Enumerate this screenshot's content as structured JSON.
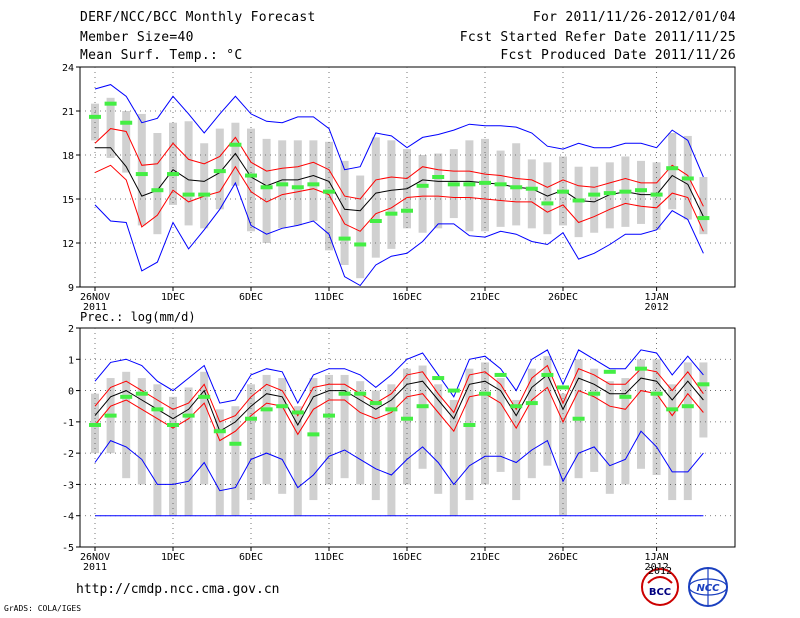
{
  "header": {
    "title": "DERF/NCC/BCC Monthly Forecast",
    "member": "Member Size=40",
    "variable": "Mean Surf. Temp.: °C",
    "period": "For 2011/11/26-2012/01/04",
    "started": "Fcst Started Refer Date 2011/11/25",
    "produced": "Fcst Produced Date 2011/11/26"
  },
  "footer": {
    "url": "http://cmdp.ncc.cma.gov.cn",
    "credit": "GrADS: COLA/IGES"
  },
  "logos": {
    "bcc": "BCC",
    "ncc": "NCC",
    "year_partial": "2012"
  },
  "colors": {
    "envelope": "#0000ff",
    "spread": "#ff0000",
    "mean": "#000000",
    "median": "#44ee44",
    "box": "#d0d0d0"
  },
  "chart_data": [
    {
      "type": "box",
      "title": "Mean Surf. Temp.: °C",
      "ylim": [
        9,
        24
      ],
      "yticks": [
        9,
        12,
        15,
        18,
        21,
        24
      ],
      "xtick_labels": [
        {
          "day": 0,
          "text": "26NOV",
          "sub": "2011"
        },
        {
          "day": 5,
          "text": "1DEC"
        },
        {
          "day": 10,
          "text": "6DEC"
        },
        {
          "day": 15,
          "text": "11DEC"
        },
        {
          "day": 20,
          "text": "16DEC"
        },
        {
          "day": 25,
          "text": "21DEC"
        },
        {
          "day": 30,
          "text": "26DEC"
        },
        {
          "day": 36,
          "text": "1JAN",
          "sub": "2012"
        }
      ],
      "max": [
        22.5,
        22.8,
        22.0,
        20.2,
        20.5,
        22.0,
        20.8,
        19.5,
        20.8,
        22.0,
        20.8,
        20.3,
        20.2,
        20.6,
        20.6,
        19.8,
        17.0,
        17.2,
        19.5,
        19.3,
        18.5,
        19.2,
        19.4,
        19.7,
        20.1,
        20.0,
        20.0,
        19.9,
        19.5,
        18.6,
        18.4,
        18.8,
        18.5,
        18.5,
        18.8,
        18.8,
        18.5,
        19.7,
        19.0,
        16.5
      ],
      "plus_sd": [
        18.8,
        19.8,
        19.6,
        17.3,
        17.4,
        18.8,
        17.7,
        17.4,
        17.9,
        19.2,
        17.5,
        16.9,
        17.1,
        17.2,
        17.5,
        17.0,
        15.2,
        15.0,
        16.3,
        16.5,
        16.4,
        17.2,
        17.0,
        16.9,
        16.9,
        16.7,
        16.6,
        16.4,
        16.3,
        15.8,
        16.3,
        15.9,
        15.8,
        16.1,
        16.4,
        16.1,
        16.1,
        17.3,
        16.6,
        14.5
      ],
      "mean": [
        18.5,
        18.5,
        17.2,
        15.2,
        15.6,
        17.0,
        16.3,
        16.2,
        16.8,
        18.1,
        16.5,
        15.9,
        16.3,
        16.3,
        16.6,
        16.2,
        14.3,
        14.2,
        15.4,
        15.6,
        15.7,
        16.3,
        16.2,
        16.2,
        16.2,
        16.1,
        16.0,
        15.8,
        15.7,
        15.2,
        15.6,
        14.9,
        14.8,
        15.3,
        15.5,
        15.3,
        15.3,
        16.6,
        16.0,
        13.8
      ],
      "minus_sd": [
        16.8,
        17.3,
        16.3,
        13.1,
        13.9,
        15.6,
        14.8,
        15.2,
        15.5,
        17.2,
        15.5,
        14.8,
        15.3,
        15.5,
        15.7,
        15.3,
        13.3,
        12.8,
        14.0,
        14.4,
        15.1,
        15.2,
        15.2,
        15.1,
        15.1,
        15.0,
        14.9,
        14.8,
        14.8,
        14.1,
        14.6,
        13.4,
        13.8,
        14.3,
        14.7,
        14.5,
        14.4,
        15.4,
        15.1,
        12.8
      ],
      "min": [
        14.6,
        13.5,
        13.4,
        10.1,
        10.7,
        13.4,
        11.6,
        12.9,
        14.3,
        16.1,
        13.2,
        12.6,
        13.0,
        13.2,
        13.5,
        12.6,
        9.7,
        9.1,
        10.5,
        11.1,
        11.3,
        12.1,
        13.3,
        13.3,
        12.5,
        12.4,
        12.8,
        12.6,
        12.1,
        11.9,
        12.7,
        10.9,
        11.3,
        11.9,
        12.6,
        12.6,
        12.9,
        14.2,
        13.6,
        11.3
      ],
      "box_hi": [
        21.5,
        21.9,
        21.0,
        20.8,
        19.5,
        20.2,
        20.3,
        18.8,
        19.8,
        20.2,
        19.8,
        19.1,
        19.0,
        19.0,
        19.0,
        18.9,
        17.6,
        16.6,
        19.2,
        19.0,
        18.4,
        18.0,
        18.1,
        18.4,
        19.0,
        19.1,
        18.3,
        18.8,
        17.7,
        17.5,
        17.9,
        17.2,
        17.2,
        17.5,
        17.9,
        17.6,
        17.5,
        19.5,
        19.3,
        16.5
      ],
      "box_lo": [
        19.0,
        17.8,
        16.8,
        13.2,
        12.6,
        14.6,
        13.2,
        13.0,
        14.3,
        15.9,
        12.8,
        12.0,
        13.0,
        13.2,
        13.5,
        11.5,
        10.5,
        9.6,
        11.0,
        11.6,
        13.0,
        12.7,
        13.0,
        13.7,
        12.8,
        12.8,
        13.1,
        13.2,
        13.0,
        12.6,
        13.2,
        12.4,
        12.7,
        13.0,
        13.1,
        13.3,
        12.9,
        14.3,
        13.6,
        12.6
      ],
      "median": [
        20.6,
        21.5,
        20.2,
        16.7,
        15.6,
        16.7,
        15.3,
        15.3,
        16.9,
        18.7,
        16.6,
        15.8,
        16.0,
        15.8,
        16.0,
        15.5,
        12.3,
        11.9,
        13.5,
        14.0,
        14.2,
        15.9,
        16.5,
        16.0,
        16.0,
        16.1,
        16.0,
        15.8,
        15.7,
        14.7,
        15.5,
        14.9,
        15.3,
        15.4,
        15.5,
        15.6,
        15.3,
        17.1,
        16.4,
        13.7
      ]
    },
    {
      "type": "box",
      "title": "Prec.: log(mm/d)",
      "ylim": [
        -5,
        2
      ],
      "yticks": [
        -5,
        -4,
        -3,
        -2,
        -1,
        0,
        1,
        2
      ],
      "xtick_labels": [
        {
          "day": 0,
          "text": "26NOV",
          "sub": "2011"
        },
        {
          "day": 5,
          "text": "1DEC"
        },
        {
          "day": 10,
          "text": "6DEC"
        },
        {
          "day": 15,
          "text": "11DEC"
        },
        {
          "day": 20,
          "text": "16DEC"
        },
        {
          "day": 25,
          "text": "21DEC"
        },
        {
          "day": 30,
          "text": "26DEC"
        },
        {
          "day": 36,
          "text": "1JAN",
          "sub": "2012"
        }
      ],
      "max": [
        0.3,
        0.9,
        1.0,
        0.8,
        0.3,
        0.0,
        0.4,
        0.8,
        -0.4,
        -0.3,
        0.5,
        0.7,
        0.6,
        -0.4,
        0.5,
        0.7,
        0.7,
        0.5,
        0.1,
        0.5,
        1.0,
        1.2,
        0.5,
        -0.2,
        1.0,
        1.1,
        0.7,
        0.0,
        1.0,
        1.3,
        0.2,
        1.3,
        1.0,
        0.7,
        0.7,
        1.3,
        1.2,
        0.5,
        1.1,
        0.5
      ],
      "plus_sd": [
        -0.5,
        0.1,
        0.3,
        0.0,
        -0.3,
        -0.6,
        -0.4,
        0.2,
        -1.0,
        -0.8,
        -0.2,
        0.2,
        0.0,
        -0.8,
        0.1,
        0.2,
        0.2,
        -0.1,
        -0.4,
        -0.1,
        0.5,
        0.6,
        -0.1,
        -0.7,
        0.5,
        0.6,
        0.2,
        -0.6,
        0.4,
        0.8,
        -0.4,
        0.7,
        0.5,
        0.2,
        0.2,
        0.7,
        0.6,
        0.0,
        0.6,
        -0.1
      ],
      "mean": [
        -0.8,
        -0.2,
        0.0,
        -0.3,
        -0.6,
        -0.9,
        -0.6,
        0.0,
        -1.3,
        -1.0,
        -0.5,
        -0.1,
        -0.2,
        -1.1,
        -0.2,
        0.0,
        0.0,
        -0.3,
        -0.6,
        -0.3,
        0.2,
        0.3,
        -0.3,
        -0.9,
        0.2,
        0.3,
        0.0,
        -0.8,
        0.1,
        0.5,
        -0.6,
        0.4,
        0.2,
        -0.1,
        -0.1,
        0.4,
        0.3,
        -0.3,
        0.3,
        -0.3
      ],
      "minus_sd": [
        -1.1,
        -0.5,
        -0.3,
        -0.6,
        -0.9,
        -1.2,
        -0.9,
        -0.4,
        -1.6,
        -1.3,
        -0.8,
        -0.4,
        -0.5,
        -1.4,
        -0.6,
        -0.3,
        -0.3,
        -0.7,
        -0.9,
        -0.7,
        -0.2,
        -0.1,
        -0.7,
        -1.3,
        -0.2,
        -0.1,
        -0.4,
        -1.2,
        -0.3,
        0.1,
        -1.0,
        0.0,
        -0.2,
        -0.5,
        -0.6,
        0.0,
        -0.1,
        -0.8,
        -0.1,
        -0.7
      ],
      "min": [
        -2.3,
        -1.6,
        -1.8,
        -2.2,
        -3.0,
        -3.0,
        -2.9,
        -2.3,
        -3.2,
        -3.1,
        -2.2,
        -2.0,
        -2.2,
        -3.1,
        -2.7,
        -2.1,
        -1.9,
        -2.2,
        -2.5,
        -2.7,
        -2.2,
        -1.8,
        -2.3,
        -3.0,
        -2.4,
        -2.1,
        -2.1,
        -2.3,
        -1.9,
        -1.6,
        -2.9,
        -2.0,
        -1.8,
        -2.4,
        -2.2,
        -1.3,
        -1.8,
        -2.6,
        -2.6,
        -2.0
      ],
      "box_hi": [
        -0.1,
        0.4,
        0.6,
        0.4,
        0.2,
        -0.2,
        0.1,
        0.6,
        -0.6,
        -0.5,
        0.2,
        0.5,
        0.4,
        -0.5,
        0.4,
        0.5,
        0.5,
        0.3,
        0.0,
        0.2,
        0.7,
        0.8,
        0.2,
        -0.3,
        0.7,
        0.9,
        0.4,
        -0.3,
        0.7,
        1.1,
        -0.1,
        1.0,
        0.7,
        0.3,
        0.4,
        1.0,
        1.0,
        0.2,
        0.9,
        0.9
      ],
      "box_lo": [
        -2.0,
        -2.0,
        -2.8,
        -3.0,
        -4.0,
        -4.0,
        -4.0,
        -3.0,
        -4.0,
        -4.0,
        -3.5,
        -3.0,
        -3.3,
        -4.0,
        -3.5,
        -3.0,
        -2.8,
        -3.0,
        -3.5,
        -4.0,
        -3.0,
        -2.5,
        -3.3,
        -4.0,
        -3.5,
        -3.0,
        -2.6,
        -3.5,
        -2.8,
        -2.4,
        -4.0,
        -2.8,
        -2.6,
        -3.3,
        -3.0,
        -2.5,
        -2.7,
        -3.5,
        -3.5,
        -1.5
      ],
      "median": [
        -1.1,
        -0.8,
        -0.2,
        -0.1,
        -0.6,
        -1.1,
        -0.8,
        -0.2,
        -1.3,
        -1.7,
        -0.9,
        -0.6,
        -0.5,
        -0.7,
        -1.4,
        -0.8,
        -0.1,
        -0.1,
        -0.4,
        -0.6,
        -0.9,
        -0.5,
        0.4,
        0.0,
        -1.1,
        -0.1,
        0.5,
        -0.5,
        -0.4,
        0.5,
        0.1,
        -0.9,
        -0.1,
        0.6,
        -0.2,
        0.7,
        -0.1,
        -0.6,
        -0.5,
        0.2
      ],
      "baseline": -4
    }
  ]
}
